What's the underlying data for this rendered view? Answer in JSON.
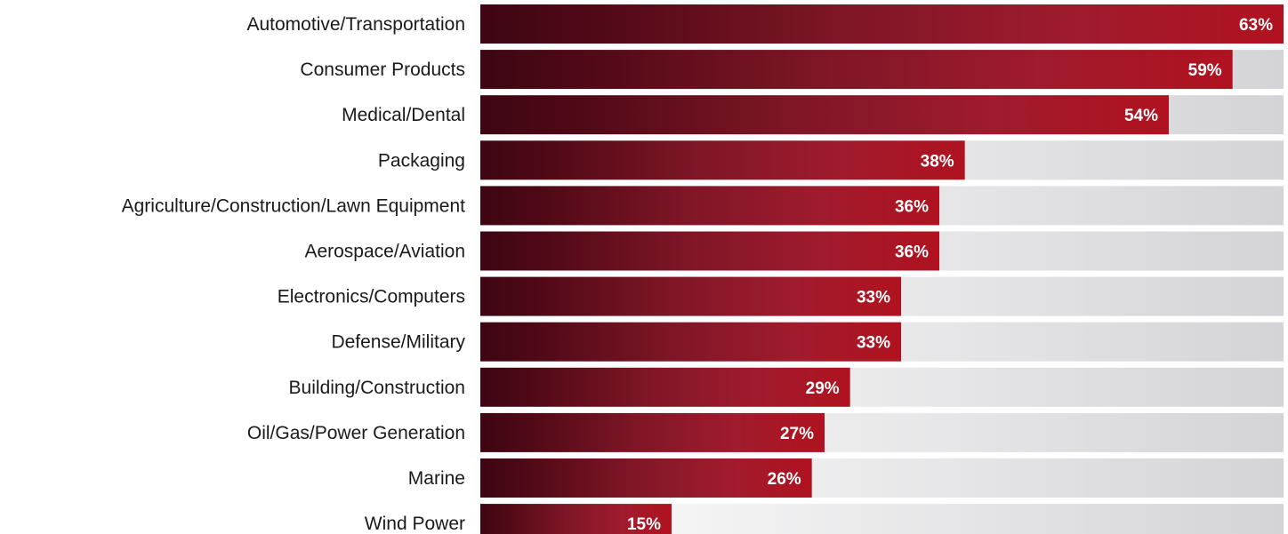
{
  "chart_data": {
    "type": "bar",
    "orientation": "horizontal",
    "categories": [
      "Automotive/Transportation",
      "Consumer Products",
      "Medical/Dental",
      "Packaging",
      "Agriculture/Construction/Lawn Equipment",
      "Aerospace/Aviation",
      "Electronics/Computers",
      "Defense/Military",
      "Building/Construction",
      "Oil/Gas/Power Generation",
      "Marine",
      "Wind Power"
    ],
    "values": [
      63,
      59,
      54,
      38,
      36,
      36,
      33,
      33,
      29,
      27,
      26,
      15
    ],
    "value_labels": [
      "63%",
      "59%",
      "54%",
      "38%",
      "36%",
      "36%",
      "33%",
      "33%",
      "29%",
      "27%",
      "26%",
      "15%"
    ],
    "xlim": [
      0,
      63
    ],
    "title": "",
    "xlabel": "",
    "ylabel": "",
    "grid": false,
    "legend": "none",
    "colors": {
      "bar_dark": "#3d0612",
      "bar_mid": "#8a1a2c",
      "bar_bright": "#b0121f",
      "track_light": "#ffffff",
      "track_dark": "#d4d4d7",
      "value_text": "#ffffff",
      "label_text": "#1a1a1a"
    }
  }
}
